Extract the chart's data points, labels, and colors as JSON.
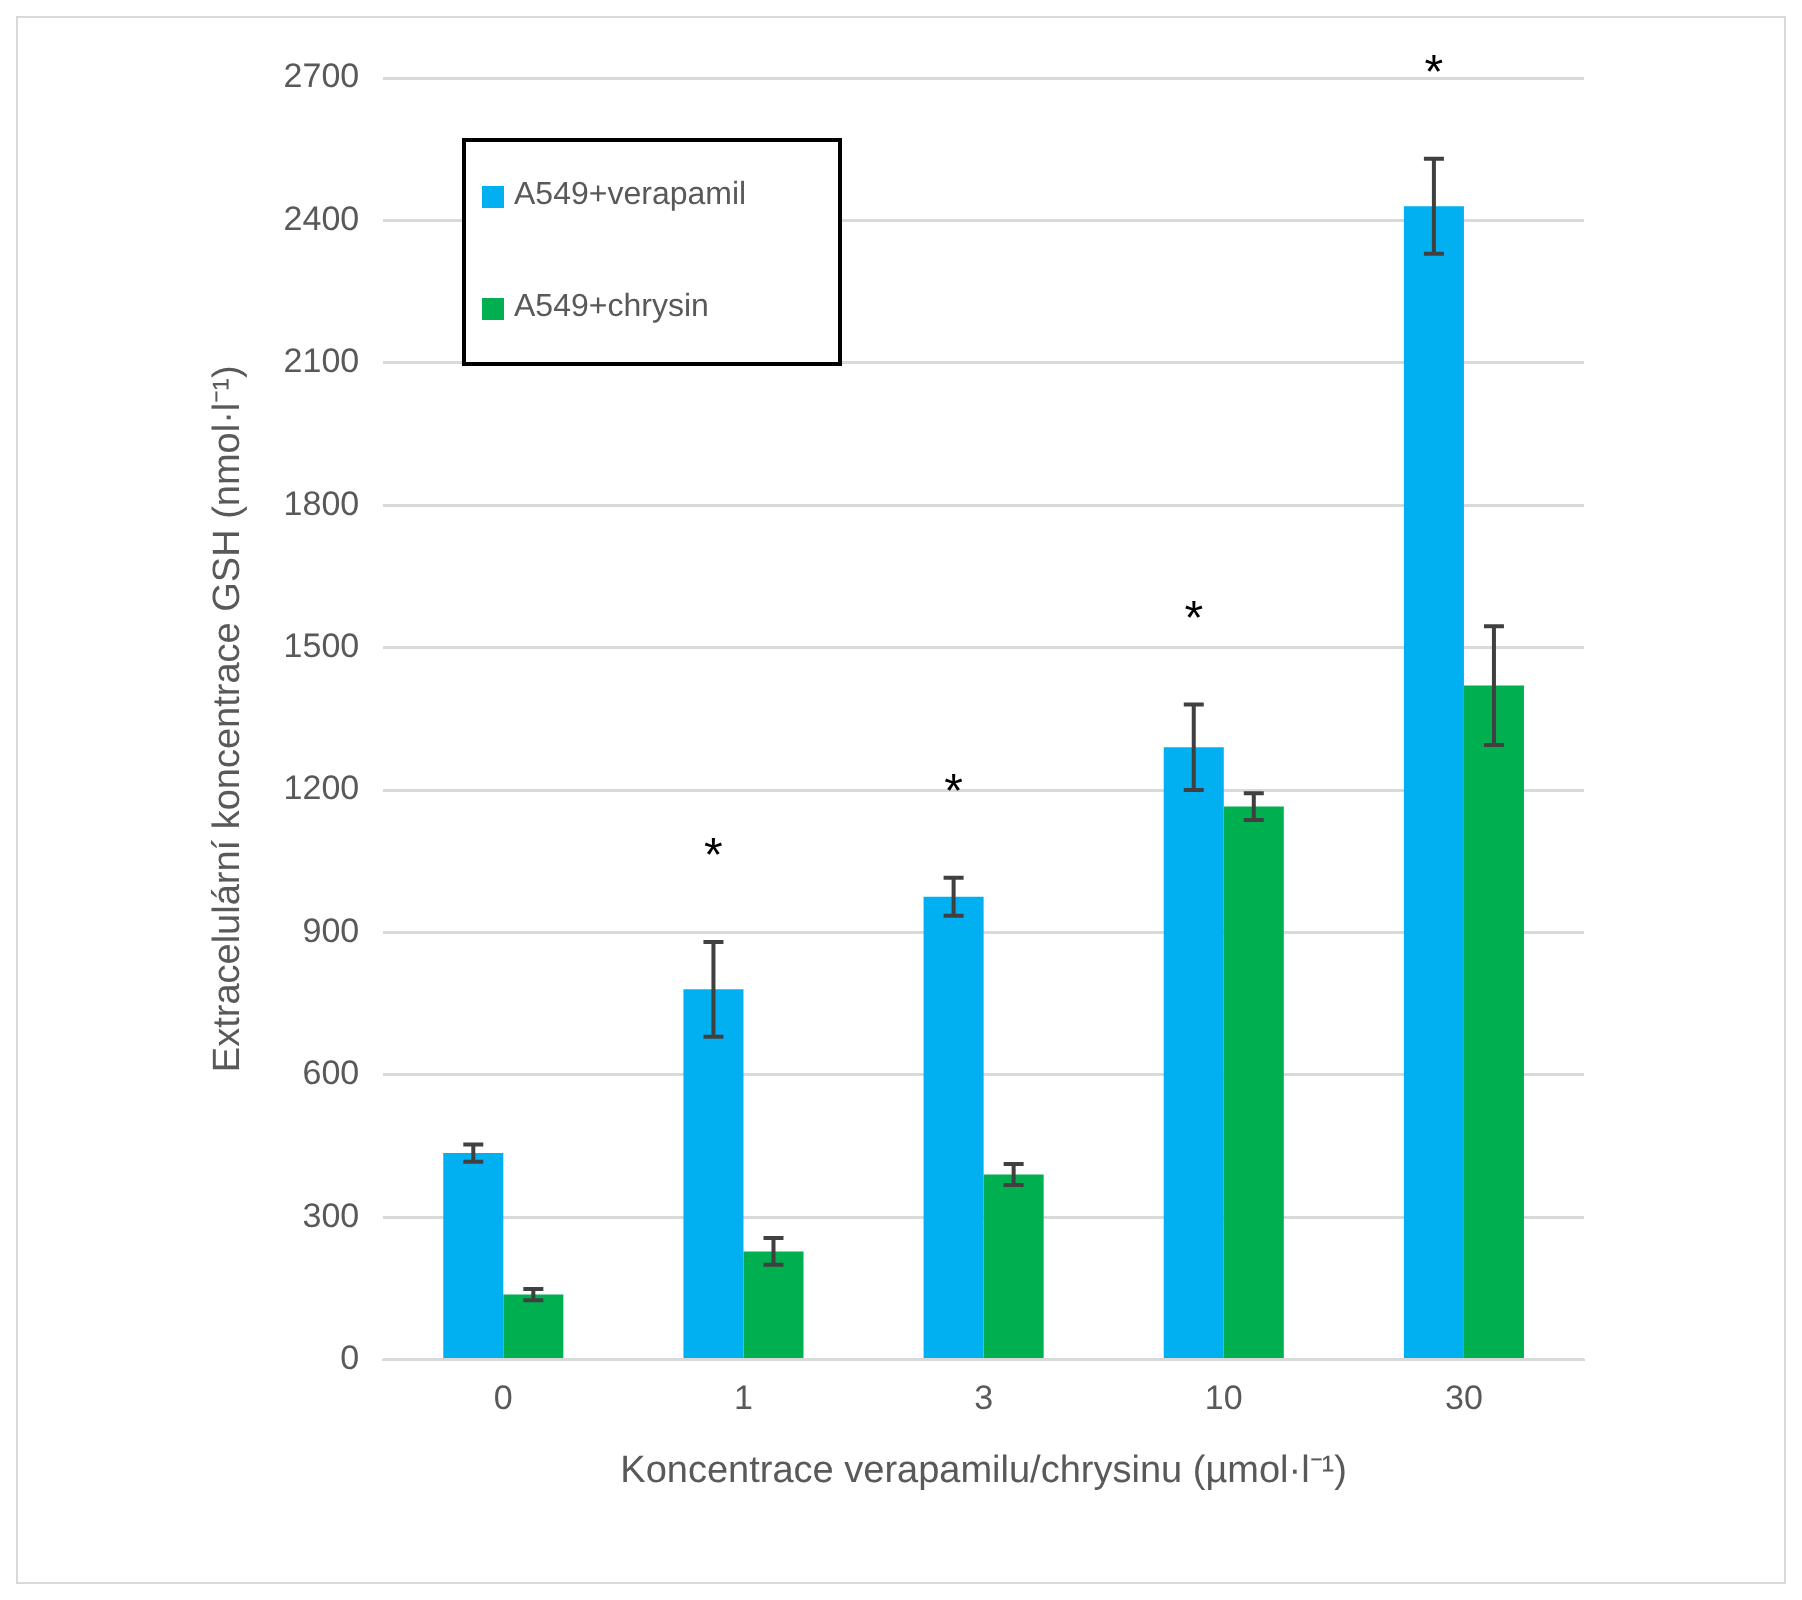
{
  "chart_data": {
    "type": "bar",
    "xlabel": "Koncentrace verapamilu/chrysinu (µmol·l⁻¹)",
    "ylabel": "Extracelulární koncentrace GSH (nmol·l⁻¹)",
    "categories": [
      "0",
      "1",
      "3",
      "10",
      "30"
    ],
    "series": [
      {
        "name": "A549+verapamil",
        "color": "#00b0f0",
        "values": [
          435,
          780,
          975,
          1290,
          2430
        ],
        "errors": [
          18,
          100,
          40,
          90,
          100
        ]
      },
      {
        "name": "A549+chrysin",
        "color": "#00b050",
        "values": [
          137,
          228,
          390,
          1165,
          1420
        ],
        "errors": [
          12,
          28,
          22,
          28,
          125
        ]
      }
    ],
    "ylim": [
      0,
      2700
    ],
    "yticks": [
      0,
      300,
      600,
      900,
      1200,
      1500,
      1800,
      2100,
      2400,
      2700
    ],
    "grid": "y",
    "legend": "top left",
    "annotations": [
      "*",
      "*",
      "*",
      "*"
    ]
  }
}
